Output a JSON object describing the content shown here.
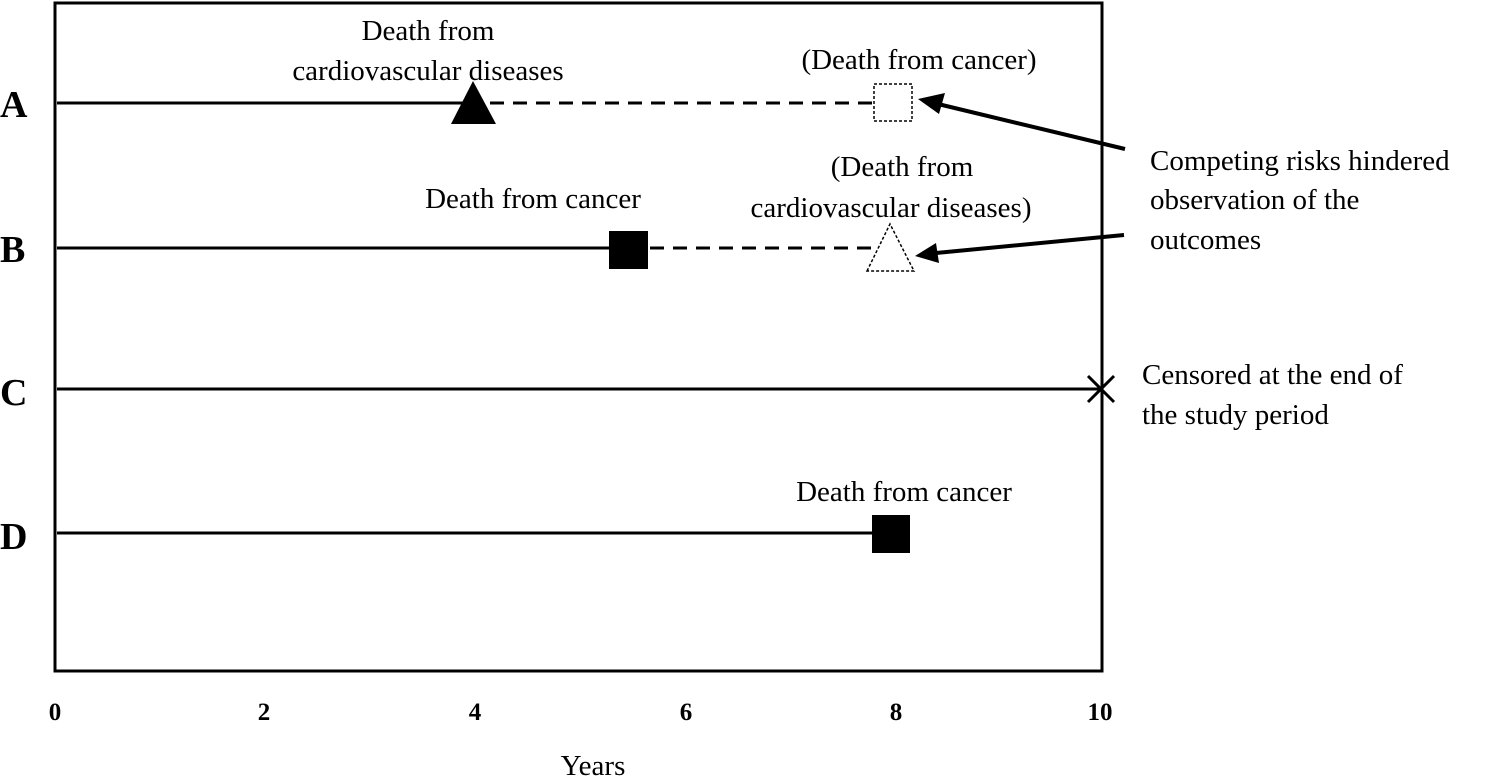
{
  "axis": {
    "title": "Years",
    "ticks": [
      "0",
      "2",
      "4",
      "6",
      "8",
      "10"
    ],
    "range": [
      0,
      10
    ]
  },
  "subjects": [
    {
      "id": "A",
      "observed_until": 4,
      "observed_event": "Death from cardiovascular diseases",
      "observed_label_lines": [
        "Death from",
        "cardiovascular diseases"
      ],
      "hypothetical_until": 8,
      "hypothetical_event": "(Death from cancer)",
      "hypothetical_label_lines": [
        "(Death from cancer)"
      ]
    },
    {
      "id": "B",
      "observed_until": 5.5,
      "observed_event": "Death from cancer",
      "observed_label_lines": [
        "Death from cancer"
      ],
      "hypothetical_until": 8,
      "hypothetical_event": "(Death from cardiovascular diseases)",
      "hypothetical_label_lines": [
        "(Death from",
        "cardiovascular diseases)"
      ]
    },
    {
      "id": "C",
      "observed_until": 10,
      "observed_event": "Censored",
      "side_label_lines": [
        "Censored at the end of",
        "the study period"
      ]
    },
    {
      "id": "D",
      "observed_until": 8,
      "observed_event": "Death from cancer",
      "observed_label_lines": [
        "Death from cancer"
      ]
    }
  ],
  "annotation": {
    "lines": [
      "Competing risks hindered",
      "observation of the",
      "outcomes"
    ]
  },
  "legend_symbols": {
    "cardiovascular": "filled-triangle",
    "cancer": "filled-square",
    "hypothetical": "dotted-outline",
    "censored": "cross"
  }
}
